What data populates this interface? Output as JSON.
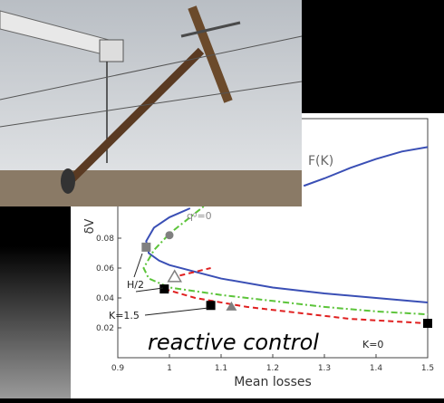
{
  "chart_data": {
    "type": "line",
    "xlabel": "Mean losses",
    "ylabel": "δV",
    "xlim": [
      0.9,
      1.5
    ],
    "xticks": [
      0.9,
      1,
      1.1,
      1.2,
      1.3,
      1.4,
      1.5
    ],
    "ylim": [
      0,
      0.16
    ],
    "yticks": [
      0.02,
      0.04,
      0.06,
      0.08
    ],
    "series": [
      {
        "color": "#3a4fb5",
        "style": "solid",
        "x": [
          1.26,
          1.3,
          1.35,
          1.4,
          1.45,
          1.5
        ],
        "values": [
          0.115,
          0.12,
          0.127,
          0.133,
          0.138,
          0.141
        ]
      },
      {
        "color": "#3a4fb5",
        "style": "solid",
        "x": [
          1.04,
          1.0,
          0.97,
          0.955,
          0.96,
          0.98,
          1.0,
          1.1,
          1.2,
          1.3,
          1.4,
          1.5
        ],
        "values": [
          0.1,
          0.094,
          0.087,
          0.078,
          0.07,
          0.065,
          0.062,
          0.053,
          0.047,
          0.043,
          0.04,
          0.037
        ]
      },
      {
        "color": "#5cc43a",
        "style": "dashdot",
        "x": [
          1.08,
          1.04,
          1.0,
          0.97,
          0.95,
          0.96,
          1.0,
          1.1,
          1.2,
          1.3,
          1.4,
          1.5
        ],
        "values": [
          0.105,
          0.094,
          0.083,
          0.072,
          0.06,
          0.053,
          0.047,
          0.042,
          0.038,
          0.034,
          0.031,
          0.029
        ]
      },
      {
        "color": "#e02020",
        "style": "dashed",
        "x": [
          0.99,
          1.05,
          1.15,
          1.25,
          1.35,
          1.45,
          1.5
        ],
        "values": [
          0.046,
          0.04,
          0.034,
          0.03,
          0.026,
          0.024,
          0.023
        ]
      },
      {
        "color": "#e02020",
        "style": "dashed",
        "x": [
          1.02,
          1.08
        ],
        "values": [
          0.055,
          0.06
        ]
      },
      {
        "color": "#808080",
        "style": "none",
        "marker": "square",
        "x": [
          0.955
        ],
        "values": [
          0.074
        ]
      },
      {
        "color": "#808080",
        "style": "none",
        "marker": "circle",
        "x": [
          1.0
        ],
        "values": [
          0.082
        ]
      },
      {
        "color": "#808080",
        "style": "none",
        "marker": "triangle-open",
        "x": [
          1.01
        ],
        "values": [
          0.054
        ]
      },
      {
        "color": "#808080",
        "style": "none",
        "marker": "triangle",
        "x": [
          1.12
        ],
        "values": [
          0.034
        ]
      },
      {
        "color": "#000000",
        "style": "none",
        "marker": "square",
        "x": [
          0.99,
          1.08,
          1.5
        ],
        "values": [
          0.046,
          0.035,
          0.023
        ]
      }
    ],
    "annotations": [
      "F(K)",
      "qᵍ=0",
      "H/2",
      "K=1.5",
      "K=0",
      "reactive control"
    ]
  }
}
